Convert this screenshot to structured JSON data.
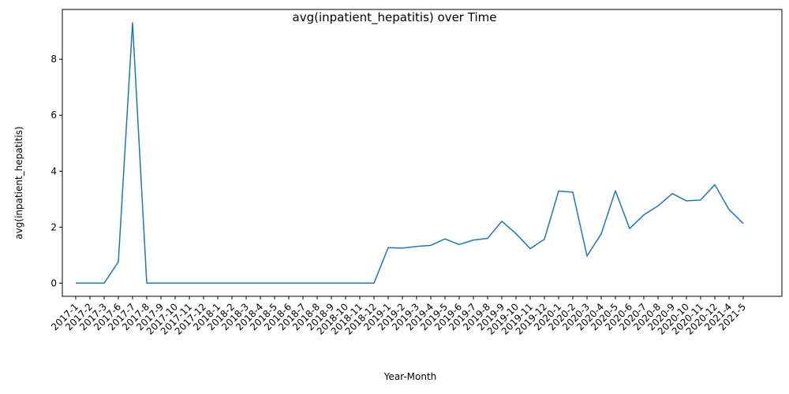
{
  "chart_data": {
    "type": "line",
    "title": "avg(inpatient_hepatitis) over Time",
    "xlabel": "Year-Month",
    "ylabel": "avg(inpatient_hepatitis)",
    "ylim": [
      -0.47,
      9.78
    ],
    "yticks": [
      0,
      2,
      4,
      6,
      8
    ],
    "grid": false,
    "color": "#1f77b4",
    "categories": [
      "2017-1",
      "2017-2",
      "2017-3",
      "2017-6",
      "2017-7",
      "2017-8",
      "2017-9",
      "2017-10",
      "2017-11",
      "2017-12",
      "2018-1",
      "2018-2",
      "2018-3",
      "2018-4",
      "2018-5",
      "2018-6",
      "2018-7",
      "2018-8",
      "2018-9",
      "2018-10",
      "2018-11",
      "2018-12",
      "2019-1",
      "2019-2",
      "2019-3",
      "2019-4",
      "2019-5",
      "2019-6",
      "2019-7",
      "2019-8",
      "2019-9",
      "2019-10",
      "2019-11",
      "2019-12",
      "2020-1",
      "2020-2",
      "2020-3",
      "2020-4",
      "2020-5",
      "2020-6",
      "2020-7",
      "2020-8",
      "2020-9",
      "2020-10",
      "2020-11",
      "2020-12",
      "2021-4",
      "2021-5"
    ],
    "values": [
      0,
      0,
      0,
      0.76,
      9.3,
      0,
      0,
      0,
      0,
      0,
      0,
      0,
      0,
      0,
      0,
      0,
      0,
      0,
      0,
      0,
      0,
      0,
      1.27,
      1.25,
      1.31,
      1.35,
      1.58,
      1.38,
      1.54,
      1.6,
      2.21,
      1.77,
      1.23,
      1.57,
      3.29,
      3.25,
      0.97,
      1.76,
      3.3,
      1.95,
      2.44,
      2.76,
      3.2,
      2.94,
      2.97,
      3.52,
      2.63,
      2.13
    ]
  }
}
